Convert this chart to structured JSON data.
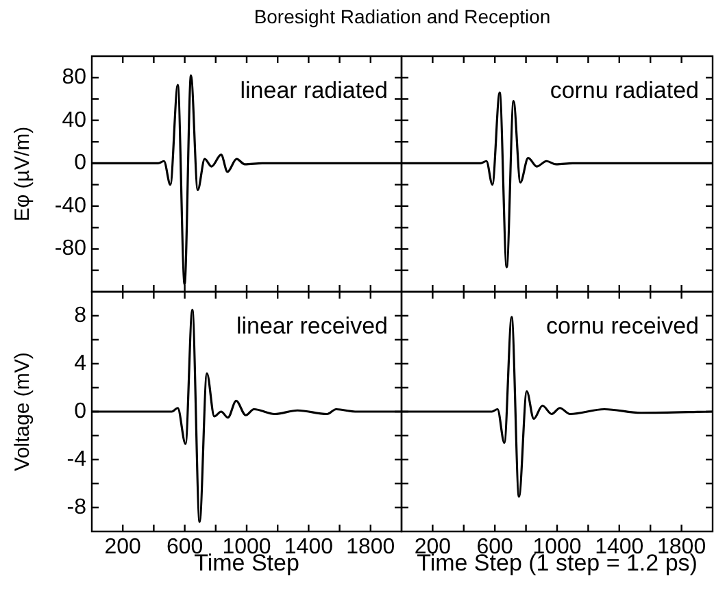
{
  "chart_data": [
    {
      "type": "line",
      "title": "Boresight Radiation and Reception",
      "ylabel": "Eφ (µV/m)",
      "annotations": [
        "linear radiated"
      ],
      "tick_labels": "y",
      "grid": false,
      "marker": "none",
      "line_style": "solid",
      "xlim": [
        0,
        2000
      ],
      "ylim": [
        -120,
        100
      ],
      "xticks": [
        200,
        {
          "value": 400,
          "label": null
        },
        600,
        {
          "value": 800,
          "label": null
        },
        1000,
        {
          "value": 1200,
          "label": null
        },
        1400,
        {
          "value": 1600,
          "label": null
        },
        1800
      ],
      "yticks": [
        -80,
        {
          "value": -100,
          "label": null
        },
        {
          "value": -60,
          "label": null
        },
        -40,
        {
          "value": -20,
          "label": null
        },
        0,
        {
          "value": 20,
          "label": null
        },
        40,
        {
          "value": 60,
          "label": null
        },
        80
      ],
      "x": [
        0,
        428,
        466,
        507,
        555,
        599,
        640,
        684,
        729,
        773,
        835,
        876,
        935,
        988,
        1100,
        2000
      ],
      "series": [
        {
          "color": "#000000",
          "values": [
            0,
            0,
            2,
            -20,
            73,
            -113,
            82,
            -25,
            4,
            -3,
            8,
            -8,
            4,
            -1,
            0,
            0
          ]
        }
      ]
    },
    {
      "type": "line",
      "annotations": [
        "cornu radiated"
      ],
      "tick_labels": false,
      "grid": false,
      "marker": "none",
      "line_style": "solid",
      "xlim": [
        0,
        2000
      ],
      "ylim": [
        -120,
        100
      ],
      "xticks": [
        200,
        {
          "value": 400,
          "label": null
        },
        600,
        {
          "value": 800,
          "label": null
        },
        1000,
        {
          "value": 1200,
          "label": null
        },
        1400,
        {
          "value": 1600,
          "label": null
        },
        1800
      ],
      "yticks": [
        -80,
        {
          "value": -100,
          "label": null
        },
        {
          "value": -60,
          "label": null
        },
        -40,
        {
          "value": -20,
          "label": null
        },
        0,
        {
          "value": 20,
          "label": null
        },
        40,
        {
          "value": 60,
          "label": null
        },
        80
      ],
      "x": [
        0,
        507,
        546,
        584,
        631,
        676,
        720,
        764,
        814,
        870,
        932,
        994,
        1100,
        2000
      ],
      "series": [
        {
          "color": "#000000",
          "values": [
            0,
            0,
            2,
            -20,
            66,
            -97,
            58,
            -18,
            5,
            -3,
            2,
            -1,
            0,
            0
          ]
        }
      ]
    },
    {
      "type": "line",
      "xlabel": "Time Step",
      "ylabel": "Voltage (mV)",
      "annotations": [
        "linear received"
      ],
      "grid": false,
      "marker": "none",
      "line_style": "solid",
      "xlim": [
        0,
        2000
      ],
      "ylim": [
        -10,
        10
      ],
      "xticks": [
        200,
        {
          "value": 400,
          "label": null
        },
        600,
        {
          "value": 800,
          "label": null
        },
        1000,
        {
          "value": 1200,
          "label": null
        },
        1400,
        {
          "value": 1600,
          "label": null
        },
        1800
      ],
      "yticks": [
        -8,
        {
          "value": -6,
          "label": null
        },
        -4,
        {
          "value": -2,
          "label": null
        },
        0,
        {
          "value": 2,
          "label": null
        },
        4,
        {
          "value": 6,
          "label": null
        },
        8
      ],
      "x": [
        0,
        516,
        555,
        605,
        649,
        696,
        743,
        791,
        835,
        879,
        932,
        994,
        1047,
        1180,
        1328,
        1519,
        1578,
        1700,
        2000
      ],
      "series": [
        {
          "color": "#000000",
          "values": [
            0,
            0,
            0.3,
            -2.7,
            8.5,
            -9.2,
            3.2,
            -0.4,
            0,
            -0.5,
            0.9,
            -0.3,
            0.2,
            -0.2,
            0.1,
            -0.2,
            0.2,
            0,
            0
          ]
        }
      ]
    },
    {
      "type": "line",
      "xlabel": "Time Step (1 step = 1.2 ps)",
      "annotations": [
        "cornu received"
      ],
      "tick_labels": "x",
      "grid": false,
      "marker": "none",
      "line_style": "solid",
      "xlim": [
        0,
        2000
      ],
      "ylim": [
        -10,
        10
      ],
      "xticks": [
        200,
        {
          "value": 400,
          "label": null
        },
        600,
        {
          "value": 800,
          "label": null
        },
        1000,
        {
          "value": 1200,
          "label": null
        },
        1400,
        {
          "value": 1600,
          "label": null
        },
        1800
      ],
      "yticks": [
        -8,
        {
          "value": -6,
          "label": null
        },
        -4,
        {
          "value": -2,
          "label": null
        },
        0,
        {
          "value": 2,
          "label": null
        },
        4,
        {
          "value": 6,
          "label": null
        },
        8
      ],
      "x": [
        0,
        581,
        617,
        661,
        708,
        755,
        805,
        850,
        906,
        965,
        1018,
        1083,
        1304,
        1540,
        2000
      ],
      "series": [
        {
          "color": "#000000",
          "values": [
            0,
            0,
            0.2,
            -2.6,
            7.9,
            -7.1,
            1.7,
            -0.6,
            0.5,
            -0.2,
            0.3,
            -0.2,
            0.2,
            -0.1,
            0
          ]
        }
      ]
    }
  ]
}
